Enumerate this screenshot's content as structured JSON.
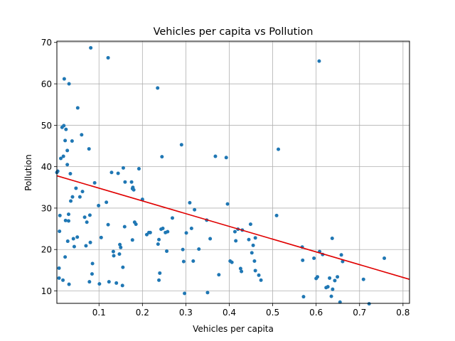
{
  "chart_data": {
    "type": "scatter",
    "title": "Vehicles per capita vs Pollution",
    "xlabel": "Vehicles per capita",
    "ylabel": "Pollution",
    "xlim": [
      0.003,
      0.815
    ],
    "ylim": [
      7,
      70.3
    ],
    "xticks": [
      0.1,
      0.2,
      0.3,
      0.4,
      0.5,
      0.6,
      0.7,
      0.8
    ],
    "xtick_labels": [
      "0.1",
      "0.2",
      "0.3",
      "0.4",
      "0.5",
      "0.6",
      "0.7",
      "0.8"
    ],
    "yticks": [
      10,
      20,
      30,
      40,
      50,
      60,
      70
    ],
    "ytick_labels": [
      "10",
      "20",
      "30",
      "40",
      "50",
      "60",
      "70"
    ],
    "grid": true,
    "point_color": "#1f77b4",
    "trendline": {
      "color": "#e00000",
      "x": [
        0.003,
        0.815
      ],
      "y": [
        37.8,
        12.8
      ]
    },
    "points": [
      [
        0.003,
        38.6
      ],
      [
        0.005,
        38.9
      ],
      [
        0.008,
        15.5
      ],
      [
        0.008,
        13.1
      ],
      [
        0.009,
        24.4
      ],
      [
        0.01,
        28.2
      ],
      [
        0.012,
        42.0
      ],
      [
        0.015,
        49.5
      ],
      [
        0.017,
        12.6
      ],
      [
        0.018,
        42.5
      ],
      [
        0.019,
        49.9
      ],
      [
        0.02,
        61.2
      ],
      [
        0.022,
        46.3
      ],
      [
        0.022,
        18.2
      ],
      [
        0.023,
        27.0
      ],
      [
        0.024,
        49.0
      ],
      [
        0.027,
        43.9
      ],
      [
        0.027,
        40.5
      ],
      [
        0.028,
        22.0
      ],
      [
        0.03,
        28.5
      ],
      [
        0.03,
        26.9
      ],
      [
        0.031,
        60.0
      ],
      [
        0.031,
        11.6
      ],
      [
        0.034,
        38.3
      ],
      [
        0.035,
        31.7
      ],
      [
        0.038,
        46.2
      ],
      [
        0.039,
        32.7
      ],
      [
        0.041,
        22.6
      ],
      [
        0.043,
        20.7
      ],
      [
        0.047,
        34.8
      ],
      [
        0.05,
        23.0
      ],
      [
        0.051,
        54.2
      ],
      [
        0.056,
        32.7
      ],
      [
        0.06,
        47.7
      ],
      [
        0.062,
        34.0
      ],
      [
        0.067,
        27.8
      ],
      [
        0.07,
        20.9
      ],
      [
        0.072,
        26.6
      ],
      [
        0.077,
        44.3
      ],
      [
        0.078,
        12.2
      ],
      [
        0.079,
        28.3
      ],
      [
        0.08,
        21.7
      ],
      [
        0.081,
        68.7
      ],
      [
        0.084,
        14.1
      ],
      [
        0.085,
        16.6
      ],
      [
        0.09,
        36.1
      ],
      [
        0.099,
        30.6
      ],
      [
        0.101,
        11.7
      ],
      [
        0.105,
        22.9
      ],
      [
        0.117,
        31.4
      ],
      [
        0.121,
        66.3
      ],
      [
        0.121,
        26.0
      ],
      [
        0.123,
        12.2
      ],
      [
        0.129,
        38.6
      ],
      [
        0.133,
        19.5
      ],
      [
        0.134,
        18.5
      ],
      [
        0.14,
        11.9
      ],
      [
        0.144,
        38.4
      ],
      [
        0.147,
        18.9
      ],
      [
        0.148,
        21.2
      ],
      [
        0.15,
        20.5
      ],
      [
        0.154,
        11.3
      ],
      [
        0.155,
        15.7
      ],
      [
        0.156,
        39.7
      ],
      [
        0.159,
        25.5
      ],
      [
        0.16,
        36.3
      ],
      [
        0.175,
        36.3
      ],
      [
        0.177,
        34.7
      ],
      [
        0.177,
        22.3
      ],
      [
        0.178,
        35.0
      ],
      [
        0.18,
        34.4
      ],
      [
        0.182,
        26.6
      ],
      [
        0.185,
        26.1
      ],
      [
        0.192,
        39.5
      ],
      [
        0.2,
        32.1
      ],
      [
        0.21,
        23.6
      ],
      [
        0.215,
        24.1
      ],
      [
        0.218,
        24.1
      ],
      [
        0.235,
        59.0
      ],
      [
        0.236,
        21.3
      ],
      [
        0.238,
        12.6
      ],
      [
        0.238,
        22.4
      ],
      [
        0.24,
        14.3
      ],
      [
        0.243,
        24.9
      ],
      [
        0.245,
        42.4
      ],
      [
        0.247,
        25.1
      ],
      [
        0.253,
        24.1
      ],
      [
        0.256,
        19.6
      ],
      [
        0.258,
        24.3
      ],
      [
        0.269,
        27.6
      ],
      [
        0.29,
        45.3
      ],
      [
        0.293,
        20.0
      ],
      [
        0.295,
        17.1
      ],
      [
        0.297,
        9.4
      ],
      [
        0.301,
        24.0
      ],
      [
        0.309,
        31.3
      ],
      [
        0.313,
        25.1
      ],
      [
        0.317,
        17.2
      ],
      [
        0.32,
        29.6
      ],
      [
        0.33,
        20.1
      ],
      [
        0.348,
        27.1
      ],
      [
        0.35,
        9.6
      ],
      [
        0.356,
        22.6
      ],
      [
        0.368,
        42.5
      ],
      [
        0.376,
        13.9
      ],
      [
        0.393,
        42.2
      ],
      [
        0.396,
        31.0
      ],
      [
        0.402,
        17.2
      ],
      [
        0.406,
        16.9
      ],
      [
        0.413,
        24.3
      ],
      [
        0.415,
        22.1
      ],
      [
        0.42,
        24.9
      ],
      [
        0.426,
        15.4
      ],
      [
        0.428,
        14.7
      ],
      [
        0.43,
        24.7
      ],
      [
        0.445,
        22.4
      ],
      [
        0.449,
        26.1
      ],
      [
        0.452,
        19.2
      ],
      [
        0.455,
        21.0
      ],
      [
        0.458,
        17.2
      ],
      [
        0.46,
        14.9
      ],
      [
        0.46,
        22.8
      ],
      [
        0.468,
        13.8
      ],
      [
        0.473,
        12.6
      ],
      [
        0.509,
        28.2
      ],
      [
        0.513,
        44.2
      ],
      [
        0.568,
        20.6
      ],
      [
        0.569,
        17.4
      ],
      [
        0.571,
        8.6
      ],
      [
        0.595,
        17.9
      ],
      [
        0.6,
        13.0
      ],
      [
        0.603,
        13.4
      ],
      [
        0.607,
        65.5
      ],
      [
        0.608,
        19.5
      ],
      [
        0.615,
        18.8
      ],
      [
        0.623,
        10.8
      ],
      [
        0.627,
        11.0
      ],
      [
        0.631,
        13.1
      ],
      [
        0.635,
        8.7
      ],
      [
        0.637,
        22.7
      ],
      [
        0.638,
        10.4
      ],
      [
        0.643,
        12.5
      ],
      [
        0.649,
        13.4
      ],
      [
        0.655,
        7.3
      ],
      [
        0.658,
        18.7
      ],
      [
        0.661,
        17.1
      ],
      [
        0.709,
        12.8
      ],
      [
        0.722,
        6.9
      ],
      [
        0.757,
        17.9
      ]
    ]
  }
}
